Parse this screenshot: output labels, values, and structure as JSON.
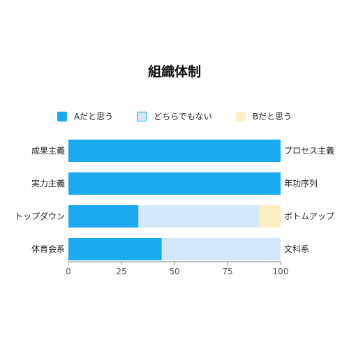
{
  "chart_data": {
    "type": "bar",
    "orientation": "horizontal",
    "stacked": true,
    "title": "組織体制",
    "categories": [
      "成果主義",
      "実力主義",
      "トップダウン",
      "体育会系"
    ],
    "right_labels": [
      "プロセス主義",
      "年功序列",
      "ボトムアップ",
      "文科系"
    ],
    "series": [
      {
        "name": "Aだと思う",
        "values": [
          100,
          100,
          33,
          44
        ],
        "color": "#1aaaf0"
      },
      {
        "name": "どちらでもない",
        "values": [
          0,
          0,
          57,
          56
        ],
        "color": "#d6e8fb"
      },
      {
        "name": "Bだと思う",
        "values": [
          0,
          0,
          10,
          0
        ],
        "color": "#fcefc4"
      }
    ],
    "xlim": [
      0,
      100
    ],
    "xticks": [
      "0",
      "25",
      "50",
      "75",
      "100"
    ],
    "grid": false,
    "legend_position": "top"
  }
}
